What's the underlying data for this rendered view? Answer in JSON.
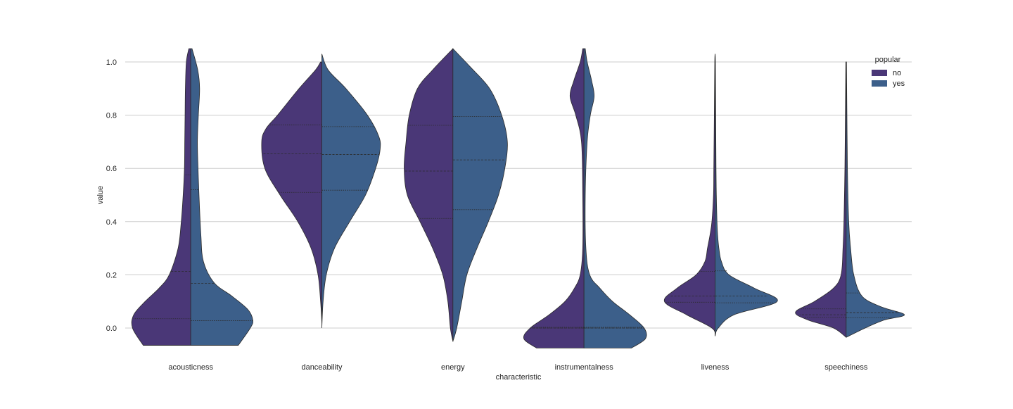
{
  "chart_data": {
    "type": "violin",
    "split": true,
    "xlabel": "characteristic",
    "ylabel": "value",
    "ylim": [
      -0.12,
      1.1
    ],
    "yticks": [
      0.0,
      0.2,
      0.4,
      0.6,
      0.8,
      1.0
    ],
    "ytick_labels": [
      "0.0",
      "0.2",
      "0.4",
      "0.6",
      "0.8",
      "1.0"
    ],
    "grid": "horizontal",
    "inner": "quartile",
    "legend": {
      "title": "popular",
      "position": "top-right"
    },
    "categories": [
      "acousticness",
      "danceability",
      "energy",
      "instrumentalness",
      "liveness",
      "speechiness"
    ],
    "series": [
      {
        "name": "no",
        "color": "#4a3777",
        "violins": [
          {
            "profile": [
              [
                -0.065,
                0.75
              ],
              [
                0.0,
                0.92
              ],
              [
                0.05,
                0.9
              ],
              [
                0.1,
                0.72
              ],
              [
                0.15,
                0.5
              ],
              [
                0.2,
                0.34
              ],
              [
                0.3,
                0.2
              ],
              [
                0.4,
                0.15
              ],
              [
                0.5,
                0.12
              ],
              [
                0.6,
                0.1
              ],
              [
                0.7,
                0.095
              ],
              [
                0.8,
                0.09
              ],
              [
                0.9,
                0.085
              ],
              [
                1.0,
                0.07
              ],
              [
                1.05,
                0.03
              ]
            ],
            "quartiles": [
              0.035,
              0.213,
              0.575
            ]
          },
          {
            "profile": [
              [
                0.02,
                0.0
              ],
              [
                0.1,
                0.02
              ],
              [
                0.2,
                0.06
              ],
              [
                0.3,
                0.17
              ],
              [
                0.4,
                0.38
              ],
              [
                0.5,
                0.66
              ],
              [
                0.6,
                0.9
              ],
              [
                0.7,
                0.95
              ],
              [
                0.75,
                0.88
              ],
              [
                0.8,
                0.7
              ],
              [
                0.9,
                0.36
              ],
              [
                0.97,
                0.1
              ],
              [
                1.0,
                0.02
              ]
            ],
            "quartiles": [
              0.51,
              0.655,
              0.763
            ]
          },
          {
            "profile": [
              [
                -0.05,
                0.0
              ],
              [
                0.0,
                0.04
              ],
              [
                0.1,
                0.08
              ],
              [
                0.2,
                0.16
              ],
              [
                0.3,
                0.32
              ],
              [
                0.4,
                0.52
              ],
              [
                0.5,
                0.72
              ],
              [
                0.6,
                0.77
              ],
              [
                0.7,
                0.74
              ],
              [
                0.8,
                0.69
              ],
              [
                0.9,
                0.56
              ],
              [
                0.97,
                0.32
              ],
              [
                1.05,
                0.0
              ]
            ],
            "quartiles": [
              0.412,
              0.59,
              0.762
            ]
          },
          {
            "profile": [
              [
                -0.075,
                0.75
              ],
              [
                -0.04,
                0.95
              ],
              [
                0.0,
                0.85
              ],
              [
                0.05,
                0.55
              ],
              [
                0.1,
                0.3
              ],
              [
                0.15,
                0.15
              ],
              [
                0.2,
                0.06
              ],
              [
                0.3,
                0.02
              ],
              [
                0.5,
                0.02
              ],
              [
                0.7,
                0.04
              ],
              [
                0.8,
                0.13
              ],
              [
                0.87,
                0.22
              ],
              [
                0.93,
                0.16
              ],
              [
                1.0,
                0.06
              ],
              [
                1.05,
                0.02
              ]
            ],
            "quartiles": [
              0.0,
              0.0,
              0.003
            ]
          },
          {
            "profile": [
              [
                -0.03,
                0.0
              ],
              [
                0.0,
                0.05
              ],
              [
                0.05,
                0.45
              ],
              [
                0.1,
                0.8
              ],
              [
                0.15,
                0.6
              ],
              [
                0.2,
                0.3
              ],
              [
                0.25,
                0.16
              ],
              [
                0.3,
                0.12
              ],
              [
                0.35,
                0.08
              ],
              [
                0.4,
                0.05
              ],
              [
                0.5,
                0.025
              ],
              [
                0.6,
                0.02
              ],
              [
                0.8,
                0.012
              ],
              [
                1.0,
                0.005
              ],
              [
                1.03,
                0.0
              ]
            ],
            "quartiles": [
              0.097,
              0.12,
              0.213
            ]
          },
          {
            "profile": [
              [
                -0.035,
                0.0
              ],
              [
                0.0,
                0.2
              ],
              [
                0.03,
                0.6
              ],
              [
                0.06,
                0.8
              ],
              [
                0.1,
                0.5
              ],
              [
                0.15,
                0.2
              ],
              [
                0.2,
                0.08
              ],
              [
                0.3,
                0.05
              ],
              [
                0.4,
                0.035
              ],
              [
                0.6,
                0.02
              ],
              [
                0.8,
                0.012
              ],
              [
                1.0,
                0.005
              ]
            ],
            "quartiles": [
              0.04,
              0.05,
              0.072
            ]
          }
        ]
      },
      {
        "name": "yes",
        "color": "#3c5f8a",
        "violins": [
          {
            "profile": [
              [
                -0.065,
                0.75
              ],
              [
                0.0,
                0.94
              ],
              [
                0.03,
                0.98
              ],
              [
                0.07,
                0.9
              ],
              [
                0.12,
                0.65
              ],
              [
                0.17,
                0.37
              ],
              [
                0.25,
                0.2
              ],
              [
                0.35,
                0.16
              ],
              [
                0.5,
                0.13
              ],
              [
                0.6,
                0.115
              ],
              [
                0.7,
                0.105
              ],
              [
                0.8,
                0.12
              ],
              [
                0.9,
                0.14
              ],
              [
                0.97,
                0.11
              ],
              [
                1.05,
                0.02
              ]
            ],
            "quartiles": [
              0.028,
              0.168,
              0.52
            ]
          },
          {
            "profile": [
              [
                0.0,
                0.0
              ],
              [
                0.1,
                0.02
              ],
              [
                0.2,
                0.07
              ],
              [
                0.3,
                0.2
              ],
              [
                0.4,
                0.44
              ],
              [
                0.5,
                0.69
              ],
              [
                0.6,
                0.85
              ],
              [
                0.67,
                0.92
              ],
              [
                0.72,
                0.9
              ],
              [
                0.8,
                0.72
              ],
              [
                0.9,
                0.38
              ],
              [
                0.97,
                0.1
              ],
              [
                1.03,
                0.0
              ]
            ],
            "quartiles": [
              0.518,
              0.652,
              0.757
            ]
          },
          {
            "profile": [
              [
                -0.05,
                0.0
              ],
              [
                0.0,
                0.06
              ],
              [
                0.1,
                0.14
              ],
              [
                0.2,
                0.22
              ],
              [
                0.3,
                0.38
              ],
              [
                0.4,
                0.56
              ],
              [
                0.5,
                0.72
              ],
              [
                0.6,
                0.82
              ],
              [
                0.7,
                0.86
              ],
              [
                0.8,
                0.77
              ],
              [
                0.9,
                0.58
              ],
              [
                0.98,
                0.28
              ],
              [
                1.05,
                0.0
              ]
            ],
            "quartiles": [
              0.445,
              0.632,
              0.795
            ]
          },
          {
            "profile": [
              [
                -0.075,
                0.75
              ],
              [
                -0.04,
                0.97
              ],
              [
                0.0,
                0.95
              ],
              [
                0.05,
                0.72
              ],
              [
                0.1,
                0.45
              ],
              [
                0.15,
                0.25
              ],
              [
                0.2,
                0.09
              ],
              [
                0.3,
                0.03
              ],
              [
                0.5,
                0.02
              ],
              [
                0.7,
                0.05
              ],
              [
                0.8,
                0.1
              ],
              [
                0.87,
                0.16
              ],
              [
                0.93,
                0.12
              ],
              [
                1.0,
                0.05
              ],
              [
                1.05,
                0.02
              ]
            ],
            "quartiles": [
              0.0,
              0.0,
              0.003
            ]
          },
          {
            "profile": [
              [
                -0.03,
                0.0
              ],
              [
                0.0,
                0.05
              ],
              [
                0.05,
                0.3
              ],
              [
                0.1,
                0.98
              ],
              [
                0.15,
                0.62
              ],
              [
                0.2,
                0.22
              ],
              [
                0.25,
                0.1
              ],
              [
                0.3,
                0.06
              ],
              [
                0.35,
                0.04
              ],
              [
                0.4,
                0.03
              ],
              [
                0.5,
                0.02
              ],
              [
                0.6,
                0.015
              ],
              [
                0.8,
                0.01
              ],
              [
                1.0,
                0.005
              ],
              [
                1.03,
                0.0
              ]
            ],
            "quartiles": [
              0.095,
              0.12,
              0.215
            ]
          },
          {
            "profile": [
              [
                -0.035,
                0.0
              ],
              [
                0.0,
                0.3
              ],
              [
                0.03,
                0.6
              ],
              [
                0.05,
                0.92
              ],
              [
                0.08,
                0.55
              ],
              [
                0.12,
                0.25
              ],
              [
                0.2,
                0.12
              ],
              [
                0.3,
                0.07
              ],
              [
                0.4,
                0.04
              ],
              [
                0.6,
                0.02
              ],
              [
                0.8,
                0.012
              ],
              [
                1.0,
                0.005
              ]
            ],
            "quartiles": [
              0.038,
              0.058,
              0.132
            ]
          }
        ]
      }
    ]
  }
}
